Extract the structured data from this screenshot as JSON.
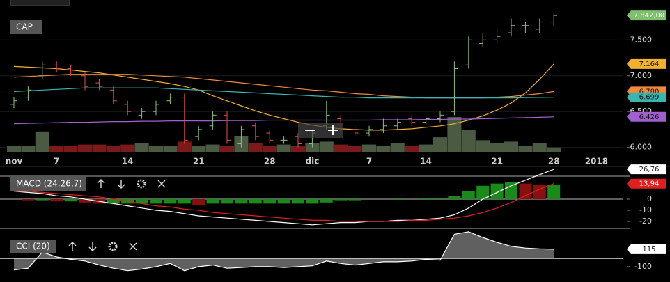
{
  "chart_data": [
    {
      "type": "ohlc",
      "title": "CAP",
      "categories": [
        "nov",
        null,
        null,
        "7",
        null,
        null,
        null,
        null,
        "14",
        null,
        null,
        null,
        null,
        "21",
        null,
        null,
        null,
        null,
        "28",
        null,
        null,
        "dic",
        null,
        null,
        null,
        "7",
        null,
        null,
        null,
        "14",
        null,
        null,
        null,
        null,
        "21",
        null,
        null,
        null,
        "28",
        null,
        null,
        "2018"
      ],
      "open": [
        6600,
        6700,
        7000,
        7150,
        7100,
        7000,
        6900,
        6800,
        6600,
        6450,
        6500,
        6650,
        6700,
        6150,
        6300,
        6450,
        6050,
        6300,
        6200,
        6100,
        6150,
        6050,
        6300,
        6400,
        6250,
        6200,
        6250,
        6300,
        6400,
        6350,
        6400,
        6500,
        7150,
        7450,
        7500,
        7600,
        7700,
        7650,
        7750,
        null,
        null,
        null
      ],
      "high": [
        6700,
        6850,
        7200,
        7200,
        7150,
        7050,
        6950,
        6850,
        6650,
        6550,
        6650,
        6750,
        6750,
        6300,
        6500,
        6500,
        6300,
        6350,
        6250,
        6150,
        6200,
        6250,
        6650,
        6450,
        6300,
        6300,
        6400,
        6400,
        6450,
        6450,
        6500,
        7200,
        7550,
        7600,
        7650,
        7800,
        7750,
        7800,
        7860,
        null,
        null,
        null
      ],
      "low": [
        6550,
        6650,
        6950,
        7050,
        7000,
        6800,
        6800,
        6600,
        6450,
        6400,
        6450,
        6600,
        6050,
        6100,
        6250,
        6050,
        6000,
        6100,
        6050,
        6050,
        6000,
        6000,
        6250,
        6200,
        6150,
        6150,
        6200,
        6250,
        6300,
        6300,
        6350,
        6450,
        7100,
        7400,
        7450,
        7550,
        7600,
        7600,
        7700,
        null,
        null,
        null
      ],
      "close": [
        6650,
        6800,
        7150,
        7100,
        7050,
        6850,
        6850,
        6650,
        6500,
        6500,
        6600,
        6700,
        6100,
        6250,
        6450,
        6100,
        6250,
        6150,
        6100,
        6100,
        6050,
        6200,
        6450,
        6250,
        6200,
        6250,
        6300,
        6350,
        6350,
        6400,
        6450,
        7100,
        7500,
        7500,
        7550,
        7700,
        7700,
        7750,
        7842,
        null,
        null,
        null
      ],
      "close_label": "7.842,00",
      "close_color": "#7fbf6e",
      "up_color": "#8fbf7f",
      "down_color": "#e05050",
      "volume": {
        "values": [
          8,
          8,
          28,
          8,
          8,
          10,
          10,
          8,
          10,
          12,
          8,
          8,
          14,
          8,
          10,
          8,
          22,
          12,
          8,
          10,
          8,
          12,
          14,
          10,
          8,
          10,
          8,
          12,
          8,
          10,
          20,
          48,
          30,
          16,
          12,
          14,
          8,
          12,
          6,
          null,
          null,
          null
        ],
        "up_color": "#4b5a42",
        "down_color": "#7a1a1a"
      },
      "lines": [
        {
          "color": "#f0b030",
          "last_label": "7.164",
          "values": [
            7130,
            7120,
            7110,
            7100,
            7080,
            7060,
            7040,
            7010,
            6980,
            6950,
            6920,
            6890,
            6850,
            6800,
            6720,
            6650,
            6580,
            6510,
            6450,
            6400,
            6350,
            6310,
            6280,
            6260,
            6250,
            6240,
            6240,
            6250,
            6260,
            6280,
            6300,
            6330,
            6380,
            6440,
            6520,
            6620,
            6760,
            6950,
            7164,
            null,
            null,
            null
          ]
        },
        {
          "color": "#f08a3a",
          "last_label": "6.780",
          "values": [
            6980,
            6990,
            7000,
            7010,
            7020,
            7020,
            7020,
            7020,
            7020,
            7010,
            7000,
            6990,
            6980,
            6960,
            6940,
            6920,
            6900,
            6880,
            6860,
            6840,
            6820,
            6800,
            6790,
            6770,
            6750,
            6740,
            6720,
            6710,
            6700,
            6690,
            6690,
            6690,
            6690,
            6690,
            6700,
            6710,
            6730,
            6750,
            6780,
            null,
            null,
            null
          ]
        },
        {
          "color": "#3ab5b0",
          "last_label": "6.699",
          "values": [
            6780,
            6790,
            6800,
            6810,
            6820,
            6830,
            6830,
            6830,
            6830,
            6830,
            6830,
            6820,
            6810,
            6800,
            6790,
            6780,
            6770,
            6760,
            6750,
            6740,
            6730,
            6720,
            6710,
            6700,
            6700,
            6690,
            6690,
            6690,
            6690,
            6690,
            6690,
            6690,
            6690,
            6690,
            6690,
            6690,
            6695,
            6697,
            6699,
            null,
            null,
            null
          ]
        },
        {
          "color": "#a060d0",
          "last_label": "6.426",
          "values": [
            6330,
            6335,
            6340,
            6345,
            6350,
            6350,
            6355,
            6360,
            6360,
            6365,
            6365,
            6370,
            6370,
            6370,
            6370,
            6375,
            6375,
            6375,
            6380,
            6380,
            6380,
            6380,
            6380,
            6380,
            6380,
            6380,
            6385,
            6385,
            6385,
            6390,
            6390,
            6395,
            6395,
            6400,
            6405,
            6410,
            6415,
            6420,
            6426,
            null,
            null,
            null
          ]
        }
      ],
      "ylim": [
        5870,
        7960
      ],
      "yticks": [
        {
          "value": 6000,
          "label": "6.000"
        },
        {
          "value": 6500,
          "label": "6.500"
        },
        {
          "value": 7000,
          "label": "7.000"
        },
        {
          "value": 7500,
          "label": "7.500"
        }
      ],
      "grid": true
    },
    {
      "type": "macd",
      "title": "MACD (24,26,7)",
      "series": [
        {
          "color": "#ffffff",
          "last_label": "26,76",
          "values": [
            7,
            6,
            5,
            3,
            2,
            0,
            -2,
            -4,
            -6,
            -8,
            -10,
            -11,
            -13,
            -15,
            -16,
            -17,
            -18,
            -19,
            -20,
            -21,
            -22,
            -23,
            -22,
            -21,
            -21,
            -20,
            -20,
            -19,
            -19,
            -18,
            -17,
            -14,
            -8,
            0,
            6,
            12,
            17,
            22,
            26.76,
            null,
            null,
            null
          ]
        },
        {
          "color": "#e02020",
          "last_label": "13,94",
          "values": [
            7,
            7,
            6,
            5,
            4,
            3,
            2,
            0,
            -2,
            -4,
            -6,
            -7,
            -9,
            -10,
            -12,
            -13,
            -14,
            -15,
            -16,
            -17,
            -18,
            -19,
            -19,
            -20,
            -20,
            -20,
            -20,
            -20,
            -19,
            -19,
            -18,
            -17,
            -15,
            -12,
            -8,
            -3,
            3,
            9,
            13.94,
            null,
            null,
            null
          ]
        }
      ],
      "histogram": {
        "values": [
          0,
          -1,
          -1,
          -2,
          -2,
          -3,
          -4,
          -4,
          -4,
          -4,
          -4,
          -4,
          -4,
          -5,
          -4,
          -4,
          -4,
          -4,
          -4,
          -4,
          -4,
          -4,
          -3,
          -1,
          -1,
          0,
          0,
          1,
          0,
          1,
          1,
          3,
          7,
          12,
          14,
          15,
          14,
          13,
          13,
          null,
          null,
          null
        ],
        "up_color": "#1a8a1a",
        "down_color": "#8a1010"
      },
      "ylim": [
        -26.25,
        28.75
      ],
      "yticks": [
        0,
        -10,
        -20
      ]
    },
    {
      "type": "cci",
      "title": "CCI (20)",
      "color": "#ffffff",
      "fill": "#6a6a6a",
      "last_label": "115",
      "values": [
        -140,
        -120,
        80,
        20,
        -10,
        -30,
        -80,
        -120,
        -150,
        -130,
        -100,
        -60,
        -150,
        -100,
        -80,
        -120,
        -110,
        -100,
        -100,
        -110,
        -100,
        -90,
        -30,
        -60,
        -80,
        -60,
        -40,
        -40,
        -30,
        -10,
        -20,
        300,
        330,
        260,
        200,
        150,
        130,
        120,
        115,
        null,
        null,
        null
      ],
      "ylim": [
        -290,
        355
      ],
      "yticks": [
        -100
      ]
    }
  ]
}
